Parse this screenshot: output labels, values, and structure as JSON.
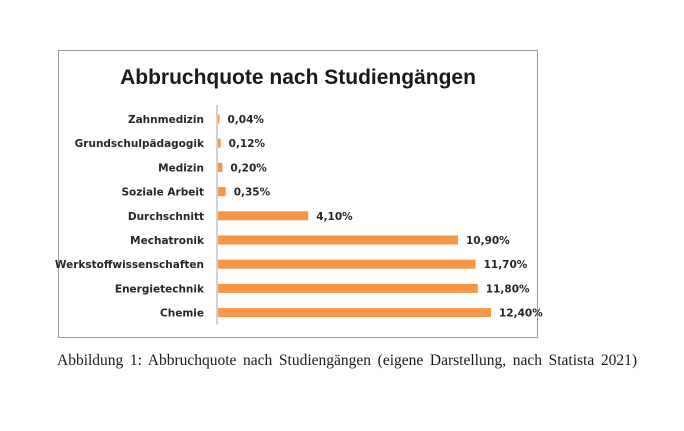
{
  "chart_data": {
    "type": "bar",
    "orientation": "horizontal",
    "title": "Abbruchquote nach Studiengängen",
    "xlabel": "",
    "ylabel": "",
    "categories": [
      "Zahnmedizin",
      "Grundschulpädagogik",
      "Medizin",
      "Soziale Arbeit",
      "Durchschnitt",
      "Mechatronik",
      "Werkstoffwissenschaften",
      "Energietechnik",
      "Chemie"
    ],
    "values": [
      0.04,
      0.12,
      0.2,
      0.35,
      4.1,
      10.9,
      11.7,
      11.8,
      12.4
    ],
    "value_labels": [
      "0,04%",
      "0,12%",
      "0,20%",
      "0,35%",
      "4,10%",
      "10,90%",
      "11,70%",
      "11,80%",
      "12,40%"
    ],
    "xlim": [
      0,
      12.4
    ],
    "grid": false,
    "legend": "none",
    "bar_color": "#f79646",
    "axis_color": "#a6a6a6"
  },
  "caption": "Abbildung 1: Abbruchquote nach Studiengängen (eigene Darstellung, nach Statista 2021)"
}
